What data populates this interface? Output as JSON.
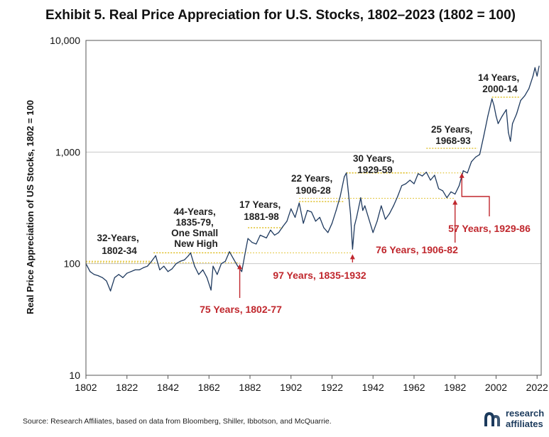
{
  "chart_data": {
    "type": "line",
    "title": "Exhibit 5. Real Price Appreciation for U.S. Stocks, 1802–2023 (1802 = 100)",
    "ylabel": "Real Price Appreciation of US Stocks, 1802 = 100",
    "xlabel": "",
    "yscale": "log",
    "ylim": [
      10,
      10000
    ],
    "xlim": [
      1802,
      2024
    ],
    "y_ticks": [
      10,
      100,
      1000,
      10000
    ],
    "y_tick_labels": [
      "10",
      "100",
      "1,000",
      "10,000"
    ],
    "x_ticks": [
      1802,
      1822,
      1842,
      1862,
      1882,
      1902,
      1922,
      1942,
      1962,
      1982,
      2002,
      2022
    ],
    "x_tick_labels": [
      "1802",
      "1822",
      "1842",
      "1862",
      "1882",
      "1902",
      "1922",
      "1942",
      "1962",
      "1982",
      "2002",
      "2022"
    ],
    "grid": "horizontal",
    "series": [
      {
        "name": "US stocks real price index",
        "color": "#1f3a5f",
        "x": [
          1802,
          1804,
          1806,
          1808,
          1810,
          1812,
          1814,
          1816,
          1818,
          1820,
          1822,
          1824,
          1826,
          1828,
          1830,
          1832,
          1834,
          1836,
          1838,
          1840,
          1842,
          1844,
          1846,
          1848,
          1850,
          1852,
          1853,
          1855,
          1857,
          1859,
          1861,
          1863,
          1864,
          1866,
          1868,
          1870,
          1872,
          1874,
          1876,
          1878,
          1880,
          1881,
          1883,
          1885,
          1887,
          1890,
          1892,
          1894,
          1896,
          1898,
          1900,
          1902,
          1904,
          1906,
          1908,
          1910,
          1912,
          1914,
          1916,
          1918,
          1920,
          1922,
          1924,
          1926,
          1928,
          1929,
          1930,
          1931,
          1932,
          1933,
          1934,
          1936,
          1937,
          1938,
          1940,
          1942,
          1944,
          1946,
          1948,
          1950,
          1952,
          1954,
          1956,
          1958,
          1960,
          1962,
          1964,
          1966,
          1968,
          1970,
          1972,
          1974,
          1976,
          1978,
          1980,
          1982,
          1984,
          1986,
          1988,
          1990,
          1992,
          1994,
          1996,
          1998,
          2000,
          2001,
          2002,
          2003,
          2005,
          2007,
          2008,
          2009,
          2010,
          2012,
          2014,
          2016,
          2018,
          2020,
          2021,
          2022,
          2023
        ],
        "values": [
          100,
          85,
          80,
          78,
          75,
          70,
          57,
          75,
          80,
          75,
          82,
          85,
          88,
          88,
          92,
          95,
          105,
          118,
          88,
          95,
          85,
          90,
          100,
          105,
          108,
          118,
          125,
          95,
          80,
          88,
          75,
          58,
          95,
          80,
          100,
          105,
          128,
          110,
          95,
          85,
          135,
          168,
          155,
          150,
          180,
          170,
          200,
          180,
          190,
          215,
          240,
          310,
          260,
          350,
          230,
          300,
          290,
          240,
          260,
          210,
          190,
          230,
          300,
          400,
          600,
          650,
          430,
          280,
          135,
          220,
          260,
          390,
          300,
          330,
          250,
          190,
          240,
          330,
          250,
          280,
          330,
          400,
          500,
          520,
          560,
          520,
          640,
          610,
          660,
          560,
          620,
          470,
          450,
          390,
          440,
          420,
          500,
          680,
          650,
          820,
          900,
          950,
          1400,
          2100,
          3000,
          2600,
          2100,
          1800,
          2100,
          2400,
          1500,
          1250,
          1800,
          2200,
          2900,
          3200,
          3700,
          4800,
          5700,
          4800,
          5900
        ],
        "peak_labels": [
          {
            "label_lines": [
              "32-Years,",
              "1802-34"
            ]
          },
          {
            "label_lines": [
              "44-Years,",
              "1835-79,",
              "One Small",
              "New High"
            ]
          },
          {
            "label_lines": [
              "17 Years,",
              "1881-98"
            ]
          },
          {
            "label_lines": [
              "22 Years,",
              "1906-28"
            ]
          },
          {
            "label_lines": [
              "30 Years,",
              "1929-59"
            ]
          },
          {
            "label_lines": [
              "25 Years,",
              "1968-93"
            ]
          },
          {
            "label_lines": [
              "14 Years,",
              "2000-14"
            ]
          }
        ]
      }
    ],
    "flat_periods": [
      {
        "start": 1802,
        "end": 1834,
        "level": 105
      },
      {
        "start": 1835,
        "end": 1879,
        "level": 125
      },
      {
        "start": 1881,
        "end": 1898,
        "level": 210
      },
      {
        "start": 1906,
        "end": 1928,
        "level": 360
      },
      {
        "start": 1929,
        "end": 1959,
        "level": 650
      },
      {
        "start": 1968,
        "end": 1993,
        "level": 1080
      },
      {
        "start": 2000,
        "end": 2014,
        "level": 3100
      }
    ],
    "recovery_periods": [
      {
        "label": "75 Years, 1802-77",
        "start": 1802,
        "end": 1877,
        "level": 102
      },
      {
        "label": "97 Years, 1835-1932",
        "start": 1835,
        "end": 1932,
        "level": 125
      },
      {
        "label": "76 Years, 1906-82",
        "start": 1906,
        "end": 1982,
        "level": 385
      },
      {
        "label": "57 Years, 1929-86",
        "start": 1929,
        "end": 1986,
        "level": 650
      }
    ]
  },
  "footer": {
    "source": "Source: Research Affiliates, based on data from Bloomberg, Shiller, Ibbotson, and McQuarrie.",
    "logo_line1": "research",
    "logo_line2": "affiliates",
    "brand_color": "#1b3a5c"
  }
}
